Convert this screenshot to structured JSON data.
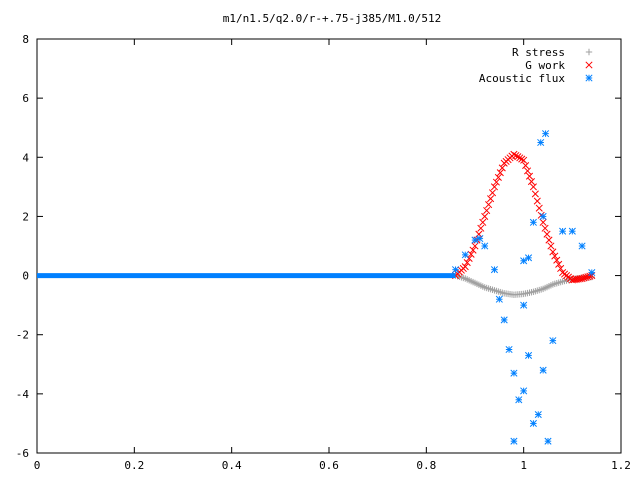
{
  "chart_data": {
    "type": "scatter",
    "title": "m1/n1.5/q2.0/r-+.75-j385/M1.0/512",
    "xlabel": "",
    "ylabel": "",
    "xlim": [
      0,
      1.2
    ],
    "ylim": [
      -6,
      8
    ],
    "x_ticks": [
      "0",
      "0.2",
      "0.4",
      "0.6",
      "0.8",
      "1",
      "1.2"
    ],
    "y_ticks": [
      "-6",
      "-4",
      "-2",
      "0",
      "2",
      "4",
      "6",
      "8"
    ],
    "grid": false,
    "legend_position": "top-right",
    "series": [
      {
        "name": "R stress",
        "marker": "+",
        "color": "#a0a0a0",
        "description_points": [
          [
            0.86,
            0.0
          ],
          [
            0.88,
            -0.1
          ],
          [
            0.9,
            -0.25
          ],
          [
            0.92,
            -0.4
          ],
          [
            0.94,
            -0.5
          ],
          [
            0.96,
            -0.6
          ],
          [
            0.98,
            -0.65
          ],
          [
            1.0,
            -0.62
          ],
          [
            1.02,
            -0.55
          ],
          [
            1.04,
            -0.45
          ],
          [
            1.06,
            -0.3
          ],
          [
            1.08,
            -0.2
          ],
          [
            1.1,
            -0.12
          ],
          [
            1.12,
            -0.08
          ],
          [
            1.14,
            -0.05
          ]
        ]
      },
      {
        "name": "G work",
        "marker": "x",
        "color": "#ff0000",
        "description_points": [
          [
            0.86,
            0.0
          ],
          [
            0.88,
            0.3
          ],
          [
            0.9,
            1.0
          ],
          [
            0.92,
            2.0
          ],
          [
            0.94,
            3.0
          ],
          [
            0.96,
            3.8
          ],
          [
            0.98,
            4.1
          ],
          [
            1.0,
            3.9
          ],
          [
            1.02,
            3.0
          ],
          [
            1.04,
            1.8
          ],
          [
            1.06,
            0.8
          ],
          [
            1.08,
            0.1
          ],
          [
            1.1,
            -0.15
          ],
          [
            1.12,
            -0.1
          ],
          [
            1.14,
            0.0
          ]
        ]
      },
      {
        "name": "Acoustic flux",
        "marker": "*",
        "color": "#0080ff",
        "points": [
          [
            0.86,
            0.2
          ],
          [
            0.88,
            0.7
          ],
          [
            0.9,
            1.2
          ],
          [
            0.91,
            1.25
          ],
          [
            0.92,
            1.0
          ],
          [
            0.94,
            0.2
          ],
          [
            0.96,
            -1.5
          ],
          [
            0.97,
            -2.5
          ],
          [
            0.98,
            -3.3
          ],
          [
            0.99,
            -4.2
          ],
          [
            1.0,
            -3.9
          ],
          [
            1.01,
            -2.7
          ],
          [
            1.02,
            -5.0
          ],
          [
            1.03,
            -4.7
          ],
          [
            1.04,
            -3.2
          ],
          [
            1.05,
            -5.6
          ],
          [
            0.98,
            -5.6
          ],
          [
            1.035,
            4.5
          ],
          [
            1.045,
            4.8
          ],
          [
            1.02,
            1.8
          ],
          [
            1.04,
            2.0
          ],
          [
            1.08,
            1.5
          ],
          [
            1.1,
            1.5
          ],
          [
            1.12,
            1.0
          ],
          [
            1.14,
            0.1
          ],
          [
            0.95,
            -0.8
          ],
          [
            1.0,
            0.5
          ],
          [
            1.01,
            0.6
          ],
          [
            1.06,
            -2.2
          ],
          [
            1.0,
            -1.0
          ]
        ],
        "baseline": {
          "from": 0,
          "to": 0.86,
          "value": 0
        }
      }
    ]
  }
}
